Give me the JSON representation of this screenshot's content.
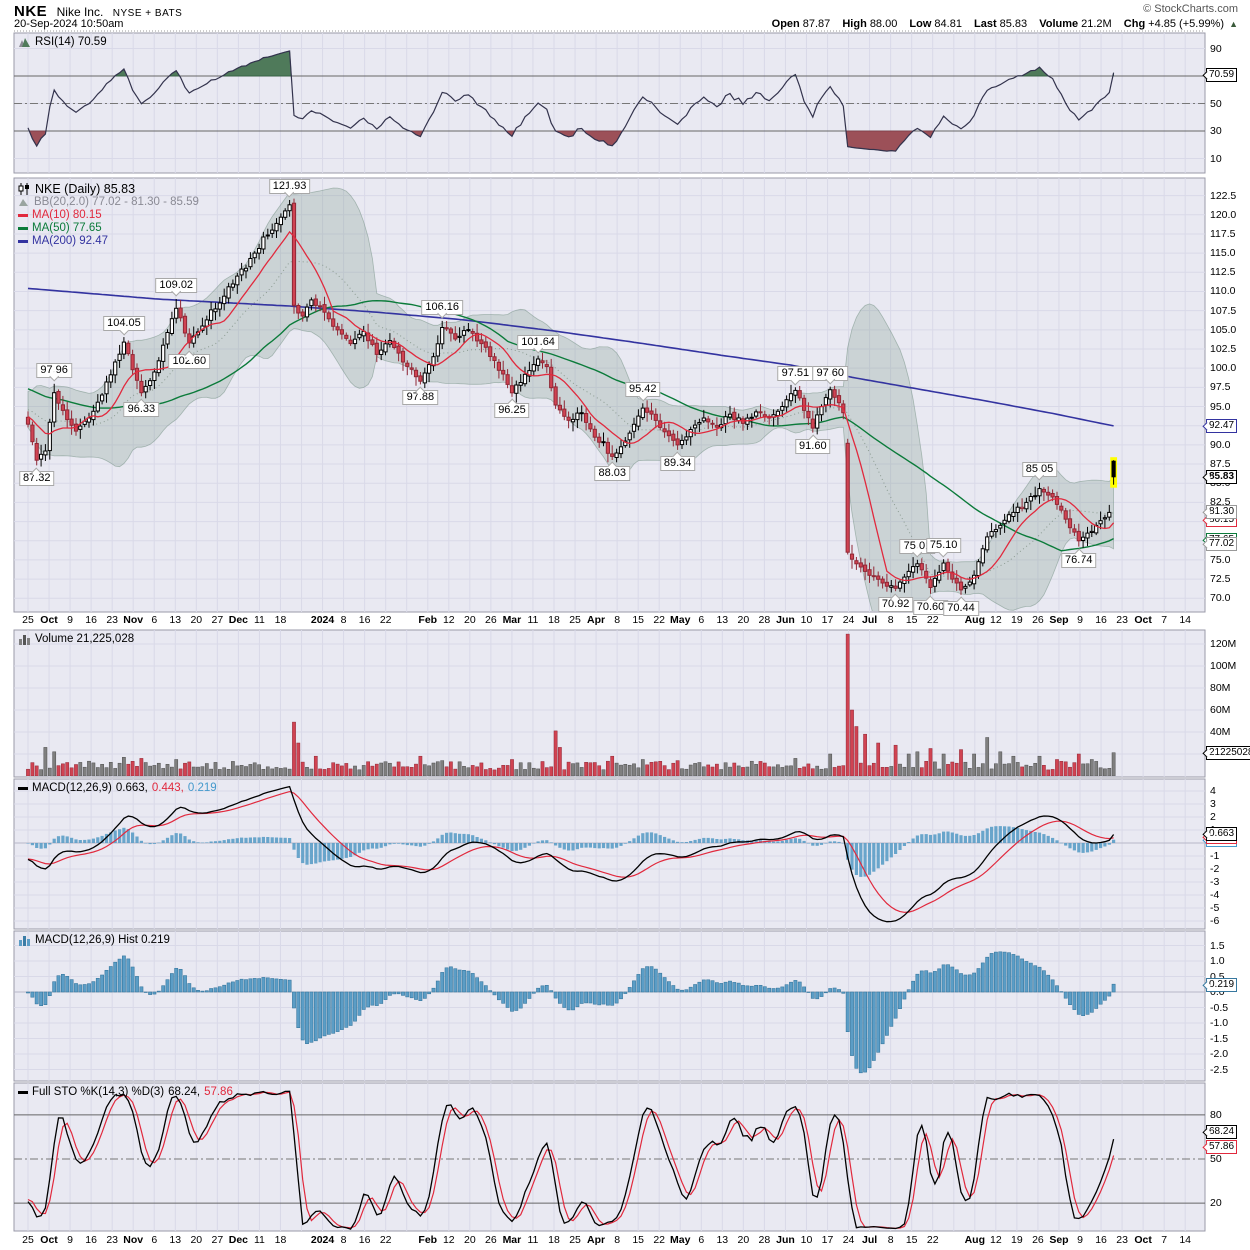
{
  "header": {
    "symbol": "NKE",
    "company": "Nike Inc.",
    "exchange": "NYSE + BATS",
    "copyright": "© StockCharts.com",
    "datetime": "20-Sep-2024 10:50am",
    "quote": {
      "open_label": "Open",
      "open": "87.87",
      "high_label": "High",
      "high": "88.00",
      "low_label": "Low",
      "low": "84.81",
      "last_label": "Last",
      "last": "85.83",
      "volume_label": "Volume",
      "volume": "21.2M",
      "chg_label": "Chg",
      "chg": "+4.85 (+5.99%)",
      "arrow": "▲"
    }
  },
  "x_axis": {
    "ticks": [
      "25",
      "Oct",
      "9",
      "16",
      "23",
      "Nov",
      "6",
      "13",
      "20",
      "27",
      "Dec",
      "11",
      "18",
      "",
      "2024",
      "8",
      "16",
      "22",
      "",
      "Feb",
      "12",
      "20",
      "26",
      "Mar",
      "11",
      "18",
      "25",
      "Apr",
      "8",
      "15",
      "22",
      "May",
      "6",
      "13",
      "20",
      "28",
      "Jun",
      "10",
      "17",
      "24",
      "Jul",
      "8",
      "15",
      "22",
      "",
      "Aug",
      "12",
      "19",
      "26",
      "Sep",
      "9",
      "16",
      "23",
      "Oct",
      "7",
      "14"
    ]
  },
  "panels": {
    "rsi": {
      "legend": "RSI(14) 70.59",
      "yticks": [
        90,
        50,
        30,
        10
      ],
      "box": {
        "label": "70.59",
        "color": "#000000",
        "v": 70.59
      }
    },
    "price": {
      "legend_main": "NKE (Daily) 85.83",
      "legend_bb": "BB(20,2.0) 77.02 - 81.30 - 85.59",
      "legend_ma10": "MA(10) 80.15",
      "legend_ma50": "MA(50) 77.65",
      "legend_ma200": "MA(200) 92.47",
      "yticks": [
        122.5,
        120.0,
        117.5,
        115.0,
        112.5,
        110.0,
        107.5,
        105.0,
        102.5,
        100.0,
        97.5,
        95.0,
        92.5,
        90.0,
        87.5,
        85.0,
        82.5,
        80.0,
        77.5,
        75.0,
        72.5,
        70.0
      ],
      "boxes": [
        {
          "label": "92.47",
          "color": "#3333a0",
          "p": 92.47,
          "bold": false
        },
        {
          "label": "85.83",
          "color": "#000000",
          "p": 85.83,
          "bold": true
        },
        {
          "label": "80.15",
          "color": "#e1293d",
          "p": 80.15,
          "bold": false
        },
        {
          "label": "81.30",
          "color": "#999999",
          "p": 81.3,
          "bold": false
        },
        {
          "label": "77.65",
          "color": "#0b7b3a",
          "p": 77.65,
          "bold": false
        },
        {
          "label": "77.02",
          "color": "#999999",
          "p": 77.02,
          "bold": false
        }
      ],
      "annotations": [
        {
          "t": "121.93",
          "slot": 60,
          "p": 121.93,
          "pos": "above"
        },
        {
          "t": "109.02",
          "slot": 34,
          "p": 109.02,
          "pos": "above"
        },
        {
          "t": "104.05",
          "slot": 22,
          "p": 104.05,
          "pos": "above"
        },
        {
          "t": "102.60",
          "slot": 37,
          "p": 102.6,
          "pos": "below"
        },
        {
          "t": "97.96",
          "slot": 6,
          "p": 97.96,
          "pos": "above"
        },
        {
          "t": "96.33",
          "slot": 26,
          "p": 96.33,
          "pos": "below"
        },
        {
          "t": "87.32",
          "slot": 2,
          "p": 87.32,
          "pos": "below"
        },
        {
          "t": "97.88",
          "slot": 90,
          "p": 97.88,
          "pos": "below"
        },
        {
          "t": "106.16",
          "slot": 95,
          "p": 106.16,
          "pos": "above"
        },
        {
          "t": "96.25",
          "slot": 111,
          "p": 96.25,
          "pos": "below"
        },
        {
          "t": "101.64",
          "slot": 117,
          "p": 101.64,
          "pos": "above"
        },
        {
          "t": "88.03",
          "slot": 134,
          "p": 88.03,
          "pos": "below"
        },
        {
          "t": "95.42",
          "slot": 141,
          "p": 95.42,
          "pos": "above"
        },
        {
          "t": "89.34",
          "slot": 149,
          "p": 89.34,
          "pos": "below"
        },
        {
          "t": "97.51",
          "slot": 176,
          "p": 97.51,
          "pos": "above"
        },
        {
          "t": "91.60",
          "slot": 180,
          "p": 91.6,
          "pos": "below"
        },
        {
          "t": "97.60",
          "slot": 184,
          "p": 97.6,
          "pos": "above"
        },
        {
          "t": "70.92",
          "slot": 199,
          "p": 70.92,
          "pos": "below"
        },
        {
          "t": "75.01",
          "slot": 204,
          "p": 75.01,
          "pos": "above"
        },
        {
          "t": "70.60",
          "slot": 207,
          "p": 70.6,
          "pos": "below"
        },
        {
          "t": "75.10",
          "slot": 210,
          "p": 75.1,
          "pos": "above"
        },
        {
          "t": "70.44",
          "slot": 214,
          "p": 70.44,
          "pos": "below"
        },
        {
          "t": "85.05",
          "slot": 232,
          "p": 85.05,
          "pos": "above"
        },
        {
          "t": "76.74",
          "slot": 241,
          "p": 76.74,
          "pos": "below"
        }
      ]
    },
    "volume": {
      "legend": "Volume 21,225,028",
      "yticks": [
        120,
        100,
        80,
        60,
        40
      ],
      "box": {
        "label": "21225028",
        "color": "#000000",
        "v": 21.2
      }
    },
    "macd": {
      "legend_name": "MACD(12,26,9)",
      "v1": "0.663,",
      "v2": "0.443,",
      "v3": "0.219",
      "yticks": [
        4,
        3,
        2,
        1,
        0,
        -1,
        -2,
        -3,
        -4,
        -5,
        -6
      ],
      "boxes": [
        {
          "label": "0.219",
          "color": "#4499cc",
          "v": 0.219
        },
        {
          "label": "0.443",
          "color": "#e1293d",
          "v": 0.443
        },
        {
          "label": "0.663",
          "color": "#000000",
          "v": 0.663
        }
      ]
    },
    "hist": {
      "legend": "MACD(12,26,9) Hist 0.219",
      "yticks": [
        1.5,
        1.0,
        0.5,
        0.0,
        -0.5,
        -1.0,
        -1.5,
        -2.0,
        -2.5
      ],
      "box": {
        "label": "0.219",
        "color": "#37789f",
        "v": 0.219
      }
    },
    "sto": {
      "legend_name": "Full STO %K(14,3) %D(3)",
      "v1": "68.24,",
      "v2": "57.86",
      "yticks": [
        80,
        50,
        20
      ],
      "boxes": [
        {
          "label": "68.24",
          "color": "#000000",
          "v": 68.24
        },
        {
          "label": "57.86",
          "color": "#e1293d",
          "v": 57.86
        }
      ]
    }
  },
  "chart_data": {
    "type": "candlestick",
    "symbol": "NKE",
    "period": "Daily",
    "ohlc_today": {
      "open": 87.87,
      "high": 88.0,
      "low": 84.81,
      "last": 85.83,
      "volume_m": 21.2,
      "chg": "+4.85 (+5.99%)"
    },
    "indicator_values": {
      "rsi14": 70.59,
      "bb20": [
        77.02,
        81.3,
        85.59
      ],
      "ma10": 80.15,
      "ma50": 77.65,
      "ma200": 92.47,
      "macd": [
        0.663,
        0.443,
        0.219
      ],
      "macd_hist": 0.219,
      "full_sto": [
        68.24,
        57.86
      ],
      "volume": 21225028
    },
    "price_axis_range": [
      68.2,
      124.8
    ],
    "volume_axis_max_m": 133,
    "last_candle": {
      "o": 87.87,
      "h": 88.0,
      "l": 84.81,
      "c": 85.83
    },
    "price_keypoints": [
      [
        0,
        92.7
      ],
      [
        2,
        88.0
      ],
      [
        4,
        89.2
      ],
      [
        6,
        96.8
      ],
      [
        8,
        94.5
      ],
      [
        11,
        91.8
      ],
      [
        14,
        93.5
      ],
      [
        17,
        96.5
      ],
      [
        20,
        100.8
      ],
      [
        22,
        103.4
      ],
      [
        24,
        99.8
      ],
      [
        26,
        96.8
      ],
      [
        29,
        99.5
      ],
      [
        31,
        103.0
      ],
      [
        34,
        107.8
      ],
      [
        37,
        103.3
      ],
      [
        40,
        105.5
      ],
      [
        44,
        108.5
      ],
      [
        48,
        112.0
      ],
      [
        52,
        115.0
      ],
      [
        56,
        118.0
      ],
      [
        59,
        120.5
      ],
      [
        60,
        121.3
      ],
      [
        61,
        108.2
      ],
      [
        63,
        106.8
      ],
      [
        65,
        108.9
      ],
      [
        68,
        107.3
      ],
      [
        71,
        105.0
      ],
      [
        74,
        103.2
      ],
      [
        77,
        104.8
      ],
      [
        80,
        101.8
      ],
      [
        83,
        103.6
      ],
      [
        86,
        100.8
      ],
      [
        90,
        98.3
      ],
      [
        93,
        101.5
      ],
      [
        95,
        105.3
      ],
      [
        98,
        103.8
      ],
      [
        101,
        105.0
      ],
      [
        104,
        103.2
      ],
      [
        107,
        101.0
      ],
      [
        111,
        96.8
      ],
      [
        114,
        99.2
      ],
      [
        117,
        101.2
      ],
      [
        119,
        100.2
      ],
      [
        121,
        95.2
      ],
      [
        124,
        93.2
      ],
      [
        127,
        94.2
      ],
      [
        130,
        91.0
      ],
      [
        134,
        88.5
      ],
      [
        137,
        90.5
      ],
      [
        141,
        94.8
      ],
      [
        144,
        93.2
      ],
      [
        147,
        91.2
      ],
      [
        149,
        90.0
      ],
      [
        152,
        92.0
      ],
      [
        155,
        93.5
      ],
      [
        158,
        92.3
      ],
      [
        161,
        94.0
      ],
      [
        164,
        92.8
      ],
      [
        167,
        94.3
      ],
      [
        170,
        93.5
      ],
      [
        173,
        95.0
      ],
      [
        176,
        97.1
      ],
      [
        178,
        94.5
      ],
      [
        180,
        92.2
      ],
      [
        182,
        95.0
      ],
      [
        184,
        97.2
      ],
      [
        186,
        95.5
      ],
      [
        187,
        94.2
      ],
      [
        188,
        76.0
      ],
      [
        190,
        74.5
      ],
      [
        193,
        73.0
      ],
      [
        196,
        72.0
      ],
      [
        199,
        71.3
      ],
      [
        202,
        73.5
      ],
      [
        204,
        74.5
      ],
      [
        207,
        71.4
      ],
      [
        210,
        74.6
      ],
      [
        212,
        72.5
      ],
      [
        214,
        71.1
      ],
      [
        217,
        73.0
      ],
      [
        220,
        78.0
      ],
      [
        223,
        79.5
      ],
      [
        226,
        81.2
      ],
      [
        229,
        82.5
      ],
      [
        232,
        84.3
      ],
      [
        235,
        83.2
      ],
      [
        237,
        81.5
      ],
      [
        239,
        79.2
      ],
      [
        241,
        77.5
      ],
      [
        243,
        78.5
      ],
      [
        245,
        79.5
      ],
      [
        247,
        80.5
      ],
      [
        248,
        81.2
      ],
      [
        249,
        85.83
      ]
    ],
    "ma200_keypoints": [
      [
        0,
        110.4
      ],
      [
        30,
        109.0
      ],
      [
        60,
        108.1
      ],
      [
        80,
        107.3
      ],
      [
        100,
        106.3
      ],
      [
        120,
        104.9
      ],
      [
        140,
        103.3
      ],
      [
        160,
        101.6
      ],
      [
        175,
        100.4
      ],
      [
        190,
        98.7
      ],
      [
        205,
        97.2
      ],
      [
        220,
        95.7
      ],
      [
        235,
        94.1
      ],
      [
        249,
        92.47
      ]
    ],
    "volume_spikes_m": [
      [
        4,
        26
      ],
      [
        6,
        22
      ],
      [
        22,
        17
      ],
      [
        26,
        16
      ],
      [
        34,
        15
      ],
      [
        61,
        49
      ],
      [
        62,
        30
      ],
      [
        66,
        18
      ],
      [
        90,
        18
      ],
      [
        95,
        14
      ],
      [
        111,
        15
      ],
      [
        121,
        41
      ],
      [
        122,
        26
      ],
      [
        134,
        18
      ],
      [
        141,
        15
      ],
      [
        149,
        14
      ],
      [
        176,
        16
      ],
      [
        184,
        20
      ],
      [
        188,
        129
      ],
      [
        189,
        60
      ],
      [
        190,
        45
      ],
      [
        192,
        38
      ],
      [
        195,
        30
      ],
      [
        199,
        28
      ],
      [
        202,
        20
      ],
      [
        204,
        22
      ],
      [
        207,
        25
      ],
      [
        210,
        20
      ],
      [
        214,
        24
      ],
      [
        217,
        20
      ],
      [
        220,
        35
      ],
      [
        223,
        22
      ],
      [
        226,
        18
      ],
      [
        232,
        18
      ],
      [
        236,
        15
      ],
      [
        241,
        20
      ],
      [
        244,
        15
      ],
      [
        249,
        21.2
      ]
    ],
    "colors": {
      "panel_bg": "#e9e9f2",
      "grid": "#d9d9e8",
      "candle_up": "#000000",
      "candle_down_fill": "#d04352",
      "candle_down_stroke": "#902735",
      "ma10": "#e1293d",
      "ma50": "#0b7b3a",
      "ma200": "#3333a0",
      "bb_fill": "rgba(125,155,140,0.28)",
      "rsi_line": "#33334d",
      "rsi_overbought_fill": "#4f7a5a",
      "rsi_oversold_fill": "#9c5058",
      "volume_up": "#7f7f7f",
      "volume_down": "#d04352",
      "macd_line": "#000000",
      "macd_signal": "#e1293d",
      "macd_hist": "#5b9dc6",
      "sto_k": "#000000",
      "sto_d": "#e1293d",
      "today_highlight": "#ffff00"
    }
  }
}
